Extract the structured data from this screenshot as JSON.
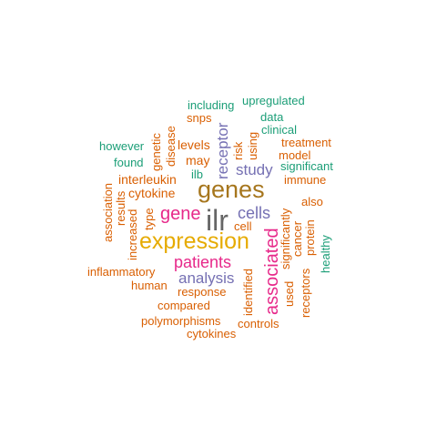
{
  "words": [
    {
      "text": "ilr",
      "color": "#666666"
    },
    {
      "text": "genes",
      "color": "#a6761d"
    },
    {
      "text": "expression",
      "color": "#e6ab02"
    },
    {
      "text": "gene",
      "color": "#e7298a"
    },
    {
      "text": "cells",
      "color": "#7570b3"
    },
    {
      "text": "patients",
      "color": "#e7298a"
    },
    {
      "text": "associated",
      "color": "#e7298a"
    },
    {
      "text": "analysis",
      "color": "#7570b3"
    },
    {
      "text": "study",
      "color": "#7570b3"
    },
    {
      "text": "receptor",
      "color": "#7570b3"
    },
    {
      "text": "interleukin",
      "color": "#d95f02"
    },
    {
      "text": "cytokine",
      "color": "#d95f02"
    },
    {
      "text": "may",
      "color": "#d95f02"
    },
    {
      "text": "levels",
      "color": "#d95f02"
    },
    {
      "text": "snps",
      "color": "#d95f02"
    },
    {
      "text": "including",
      "color": "#1b9e77"
    },
    {
      "text": "upregulated",
      "color": "#1b9e77"
    },
    {
      "text": "data",
      "color": "#1b9e77"
    },
    {
      "text": "clinical",
      "color": "#1b9e77"
    },
    {
      "text": "treatment",
      "color": "#d95f02"
    },
    {
      "text": "model",
      "color": "#d95f02"
    },
    {
      "text": "significant",
      "color": "#1b9e77"
    },
    {
      "text": "immune",
      "color": "#d95f02"
    },
    {
      "text": "also",
      "color": "#d95f02"
    },
    {
      "text": "however",
      "color": "#1b9e77"
    },
    {
      "text": "found",
      "color": "#1b9e77"
    },
    {
      "text": "ilb",
      "color": "#1b9e77"
    },
    {
      "text": "cell",
      "color": "#d95f02"
    },
    {
      "text": "inflammatory",
      "color": "#d95f02"
    },
    {
      "text": "human",
      "color": "#d95f02"
    },
    {
      "text": "response",
      "color": "#d95f02"
    },
    {
      "text": "compared",
      "color": "#d95f02"
    },
    {
      "text": "polymorphisms",
      "color": "#d95f02"
    },
    {
      "text": "cytokines",
      "color": "#d95f02"
    },
    {
      "text": "controls",
      "color": "#d95f02"
    },
    {
      "text": "genetic",
      "color": "#d95f02"
    },
    {
      "text": "disease",
      "color": "#d95f02"
    },
    {
      "text": "risk",
      "color": "#d95f02"
    },
    {
      "text": "using",
      "color": "#d95f02"
    },
    {
      "text": "type",
      "color": "#d95f02"
    },
    {
      "text": "results",
      "color": "#d95f02"
    },
    {
      "text": "increased",
      "color": "#d95f02"
    },
    {
      "text": "association",
      "color": "#d95f02"
    },
    {
      "text": "identified",
      "color": "#d95f02"
    },
    {
      "text": "significantly",
      "color": "#d95f02"
    },
    {
      "text": "used",
      "color": "#d95f02"
    },
    {
      "text": "cancer",
      "color": "#d95f02"
    },
    {
      "text": "receptors",
      "color": "#d95f02"
    },
    {
      "text": "protein",
      "color": "#d95f02"
    },
    {
      "text": "healthy",
      "color": "#1b9e77"
    }
  ]
}
